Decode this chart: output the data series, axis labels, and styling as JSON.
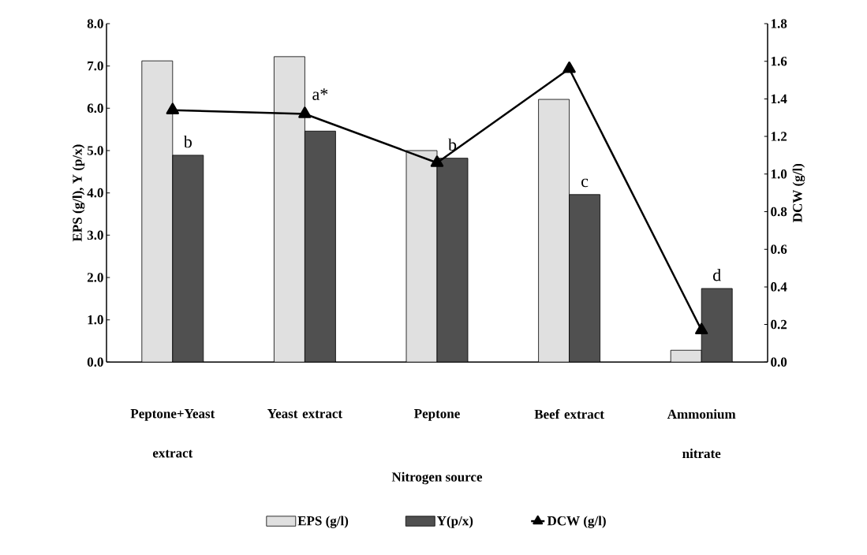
{
  "chart_data": {
    "type": "bar",
    "categories": [
      "Peptone+Yeast extract",
      "Yeast extract",
      "Peptone",
      "Beef extract",
      "Ammonium nitrate"
    ],
    "series": [
      {
        "name": "EPS (g/l)",
        "color": "#e0e0e0",
        "values": [
          7.12,
          7.22,
          5.0,
          6.21,
          0.28
        ]
      },
      {
        "name": "Y(p/x)",
        "color": "#505050",
        "values": [
          4.89,
          5.46,
          4.82,
          3.96,
          1.74
        ]
      },
      {
        "name": "DCW (g/l)",
        "color": "#000000",
        "type": "line",
        "axis": "y2",
        "values": [
          1.34,
          1.32,
          1.06,
          1.56,
          0.17
        ]
      }
    ],
    "xlabel": "Nitrogen source",
    "ylabel": "EPS (g/l), Y (p/x)",
    "y2label": "DCW (g/l)",
    "ylim": [
      0,
      8
    ],
    "yticks": [
      {
        "value": 0,
        "label": "0.0"
      },
      {
        "value": 1,
        "label": "1.0"
      },
      {
        "value": 2,
        "label": "2.0"
      },
      {
        "value": 3,
        "label": "3.0"
      },
      {
        "value": 4,
        "label": "4.0"
      },
      {
        "value": 5,
        "label": "5.0"
      },
      {
        "value": 6,
        "label": "6.0"
      },
      {
        "value": 7,
        "label": "7.0"
      },
      {
        "value": 8,
        "label": "8.0"
      }
    ],
    "y2lim": [
      0,
      1.8
    ],
    "y2ticks": [
      {
        "value": 0,
        "label": "0.0"
      },
      {
        "value": 0.2,
        "label": "0.2"
      },
      {
        "value": 0.4,
        "label": "0.4"
      },
      {
        "value": 0.6,
        "label": "0.6"
      },
      {
        "value": 0.8,
        "label": "0.8"
      },
      {
        "value": 1,
        "label": "1.0"
      },
      {
        "value": 1.2,
        "label": "1.2"
      },
      {
        "value": 1.4,
        "label": "1.4"
      },
      {
        "value": 1.6,
        "label": "1.6"
      },
      {
        "value": 1.8,
        "label": "1.8"
      }
    ],
    "legend": "bottom",
    "marker": "triangle",
    "annotations": [
      {
        "text": "b",
        "x": "Peptone+Yeast extract",
        "y": 4.89
      },
      {
        "text": "a*",
        "x": "Yeast extract",
        "y": 5.46
      },
      {
        "text": "b",
        "x": "Peptone",
        "y": 4.82
      },
      {
        "text": "c",
        "x": "Beef extract",
        "y": 3.96
      },
      {
        "text": "d",
        "x": "Ammonium nitrate",
        "y": 1.74
      }
    ]
  }
}
